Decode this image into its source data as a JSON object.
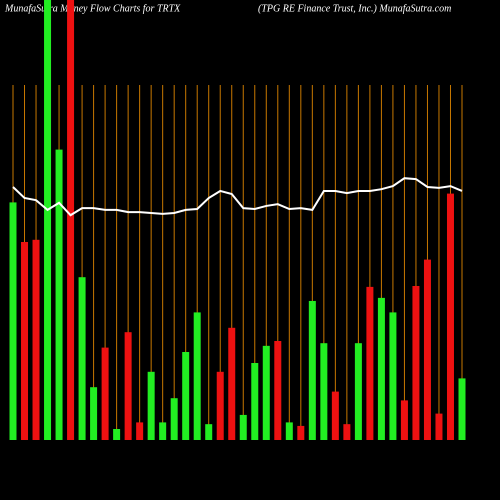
{
  "chart_data": {
    "type": "bar",
    "title": "MunafaSutra  Money Flow  Charts for TRTX",
    "subtitle": "(TPG RE Finance  Trust, Inc.) MunafaSutra.com",
    "ylim": [
      0,
      100
    ],
    "grid": true,
    "grid_color": "#c87800",
    "line_color": "#ffffff",
    "values": [
      54,
      45,
      45.5,
      100,
      66,
      100,
      37,
      12,
      21,
      2.5,
      24.5,
      4,
      15.5,
      4,
      9.5,
      20,
      29,
      3.6,
      15.5,
      25.5,
      5.7,
      17.5,
      21.4,
      22.5,
      4,
      3.2,
      31.6,
      22,
      11,
      3.6,
      22,
      34.8,
      32.3,
      29,
      9,
      35,
      41,
      6,
      56,
      14
    ],
    "colors": [
      "#22ee22",
      "#ee1111",
      "#ee1111",
      "#22ee22",
      "#22ee22",
      "#ee1111",
      "#22ee22",
      "#22ee22",
      "#ee1111",
      "#22ee22",
      "#ee1111",
      "#ee1111",
      "#22ee22",
      "#22ee22",
      "#22ee22",
      "#22ee22",
      "#22ee22",
      "#22ee22",
      "#ee1111",
      "#ee1111",
      "#22ee22",
      "#22ee22",
      "#22ee22",
      "#ee1111",
      "#22ee22",
      "#ee1111",
      "#22ee22",
      "#22ee22",
      "#ee1111",
      "#ee1111",
      "#22ee22",
      "#ee1111",
      "#22ee22",
      "#22ee22",
      "#ee1111",
      "#ee1111",
      "#ee1111",
      "#ee1111",
      "#ee1111",
      "#22ee22"
    ],
    "line_values": [
      57.5,
      55,
      54.5,
      52.3,
      53.9,
      51.1,
      52.7,
      52.7,
      52.3,
      52.3,
      51.8,
      51.8,
      51.6,
      51.4,
      51.6,
      52.3,
      52.5,
      55,
      56.6,
      55.9,
      52.7,
      52.5,
      53.2,
      53.6,
      52.5,
      52.7,
      52.3,
      56.6,
      56.6,
      56.1,
      56.6,
      56.6,
      57,
      57.7,
      59.5,
      59.3,
      57.5,
      57.3,
      57.7,
      56.6
    ]
  }
}
